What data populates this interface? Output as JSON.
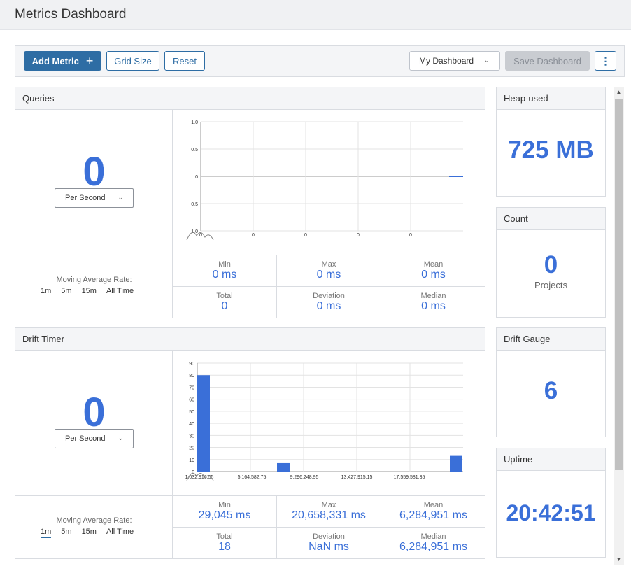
{
  "title": "Metrics Dashboard",
  "toolbar": {
    "add_metric": "Add Metric",
    "add_icon": "plus-icon",
    "grid_size": "Grid Size",
    "reset": "Reset",
    "dashboard_select": "My Dashboard",
    "save_dashboard": "Save Dashboard",
    "more_icon": "kebab-icon"
  },
  "queries": {
    "title": "Queries",
    "value": "0",
    "rate_select": "Per Second",
    "moving_avg_label": "Moving Average Rate:",
    "rates": [
      "1m",
      "5m",
      "15m",
      "All Time"
    ],
    "stats": {
      "min_label": "Min",
      "min": "0 ms",
      "max_label": "Max",
      "max": "0 ms",
      "mean_label": "Mean",
      "mean": "0 ms",
      "total_label": "Total",
      "total": "0",
      "dev_label": "Deviation",
      "dev": "0 ms",
      "median_label": "Median",
      "median": "0 ms"
    },
    "chart_data": {
      "type": "line",
      "y_ticks": [
        "1.0",
        "0.5",
        "0",
        "0.5",
        "1.0"
      ],
      "x_ticks": [
        "0",
        "0",
        "0",
        "0",
        "0"
      ],
      "series": [
        {
          "name": "queries",
          "values": [
            0
          ]
        }
      ]
    }
  },
  "drift_timer": {
    "title": "Drift Timer",
    "value": "0",
    "rate_select": "Per Second",
    "moving_avg_label": "Moving Average Rate:",
    "rates": [
      "1m",
      "5m",
      "15m",
      "All Time"
    ],
    "stats": {
      "min_label": "Min",
      "min": "29,045 ms",
      "max_label": "Max",
      "max": "20,658,331 ms",
      "mean_label": "Mean",
      "mean": "6,284,951 ms",
      "total_label": "Total",
      "total": "18",
      "dev_label": "Deviation",
      "dev": "NaN ms",
      "median_label": "Median",
      "median": "6,284,951 ms"
    },
    "chart_data": {
      "type": "bar",
      "y_ticks": [
        0,
        10,
        20,
        30,
        40,
        50,
        60,
        70,
        80,
        90
      ],
      "ylim": [
        0,
        90
      ],
      "x_ticks": [
        "1,032,916.55",
        "5,164,582.75",
        "9,296,248.95",
        "13,427,915.15",
        "17,559,581.35"
      ],
      "values": [
        80,
        0,
        0,
        0,
        0,
        0,
        7,
        0,
        0,
        0,
        0,
        0,
        0,
        0,
        0,
        0,
        0,
        0,
        0,
        13
      ]
    }
  },
  "heap_used": {
    "title": "Heap-used",
    "value": "725 MB"
  },
  "count": {
    "title": "Count",
    "value": "0",
    "unit": "Projects"
  },
  "drift_gauge": {
    "title": "Drift Gauge",
    "value": "6"
  },
  "uptime": {
    "title": "Uptime",
    "value": "20:42:51"
  },
  "colors": {
    "accent": "#3a6fd8",
    "primary": "#2e6da4"
  }
}
